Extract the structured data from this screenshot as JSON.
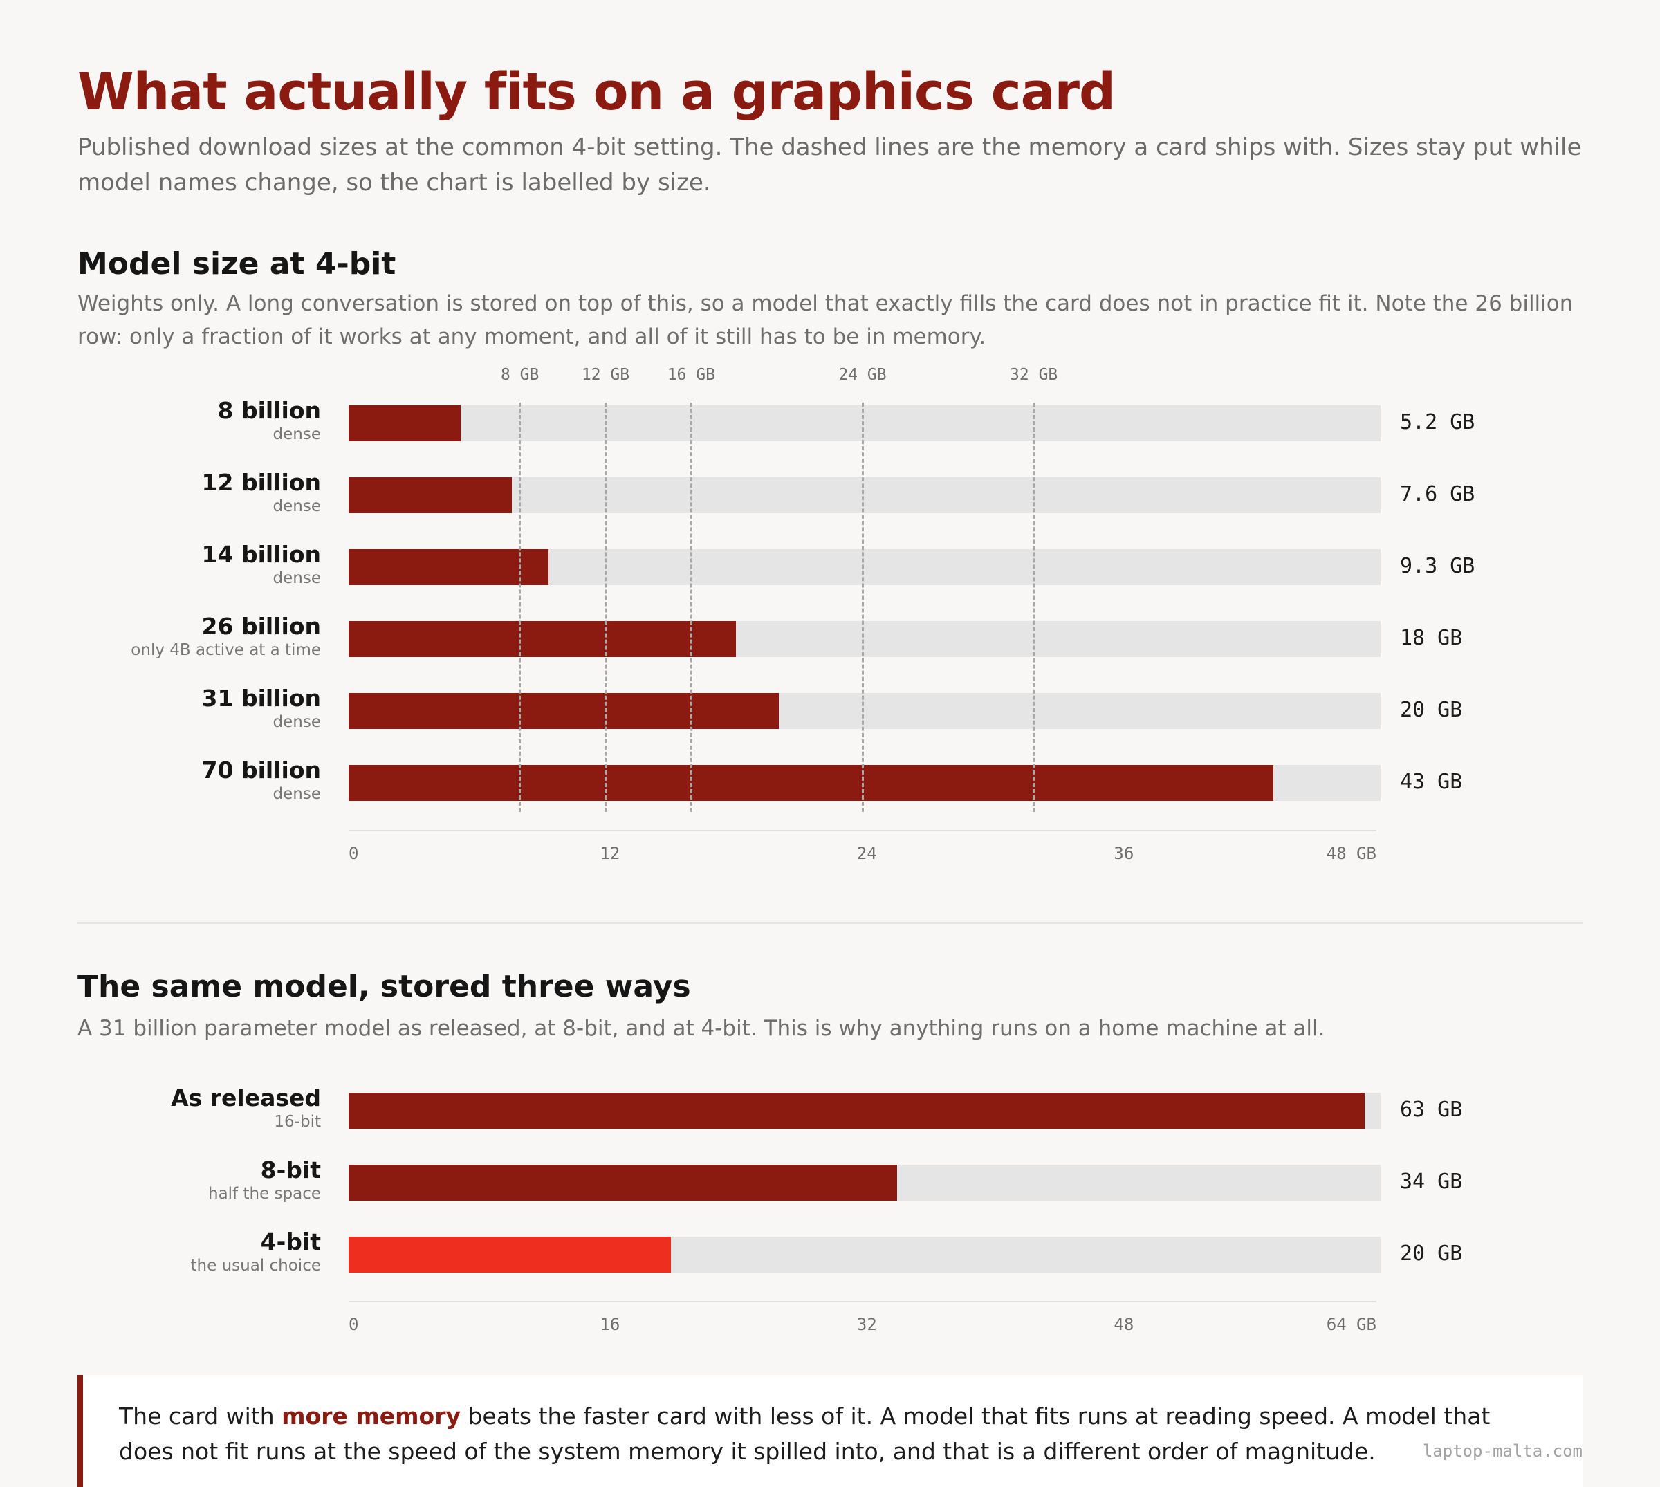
{
  "title": "What actually fits on a graphics card",
  "subtitle": "Published download sizes at the common 4-bit setting. The dashed lines are the memory a card ships with. Sizes stay put while model names change, so the chart is labelled by size.",
  "section1": {
    "heading": "Model size at 4-bit",
    "description": "Weights only. A long conversation is stored on top of this, so a model that exactly fills the card does not in practice fit it. Note the 26 billion row: only a fraction of it works at any moment, and all of it still has to be in memory."
  },
  "section2": {
    "heading": "The same model, stored three ways",
    "description": "A 31 billion parameter model as released, at 8-bit, and at 4-bit. This is why anything runs on a home machine at all."
  },
  "callout": {
    "before": "The card with ",
    "highlight": "more memory",
    "after": " beats the faster card with less of it. A model that fits runs at reading speed. A model that does not fit runs at the speed of the system memory it spilled into, and that is a different order of magnitude."
  },
  "credit": "laptop-malta.com",
  "colors": {
    "bar": "#8b1a10",
    "accent_bar": "#ee2e1e",
    "track": "#e5e5e5",
    "title": "#8b1a10"
  },
  "chart_data": [
    {
      "type": "bar",
      "orientation": "horizontal",
      "title": "Model size at 4-bit",
      "categories": [
        "8 billion",
        "12 billion",
        "14 billion",
        "26 billion",
        "31 billion",
        "70 billion"
      ],
      "category_notes": [
        "dense",
        "dense",
        "dense",
        "only 4B active at a time",
        "dense",
        "dense"
      ],
      "values": [
        5.2,
        7.6,
        9.3,
        18,
        20,
        43
      ],
      "value_labels": [
        "5.2 GB",
        "7.6 GB",
        "9.3 GB",
        "18 GB",
        "20 GB",
        "43 GB"
      ],
      "xlim": [
        0,
        48
      ],
      "xticks": [
        0,
        12,
        24,
        36,
        48
      ],
      "xtick_labels": [
        "0",
        "12",
        "24",
        "36",
        "48 GB"
      ],
      "reference_lines": [
        {
          "value": 8,
          "label": "8 GB"
        },
        {
          "value": 12,
          "label": "12 GB"
        },
        {
          "value": 16,
          "label": "16 GB"
        },
        {
          "value": 24,
          "label": "24 GB"
        },
        {
          "value": 32,
          "label": "32 GB"
        }
      ]
    },
    {
      "type": "bar",
      "orientation": "horizontal",
      "title": "The same model, stored three ways",
      "categories": [
        "As released",
        "8-bit",
        "4-bit"
      ],
      "category_notes": [
        "16-bit",
        "half the space",
        "the usual choice"
      ],
      "values": [
        63,
        34,
        20
      ],
      "value_labels": [
        "63 GB",
        "34 GB",
        "20 GB"
      ],
      "highlight": "4-bit",
      "xlim": [
        0,
        64
      ],
      "xticks": [
        0,
        16,
        32,
        48,
        64
      ],
      "xtick_labels": [
        "0",
        "16",
        "32",
        "48",
        "64 GB"
      ]
    }
  ]
}
